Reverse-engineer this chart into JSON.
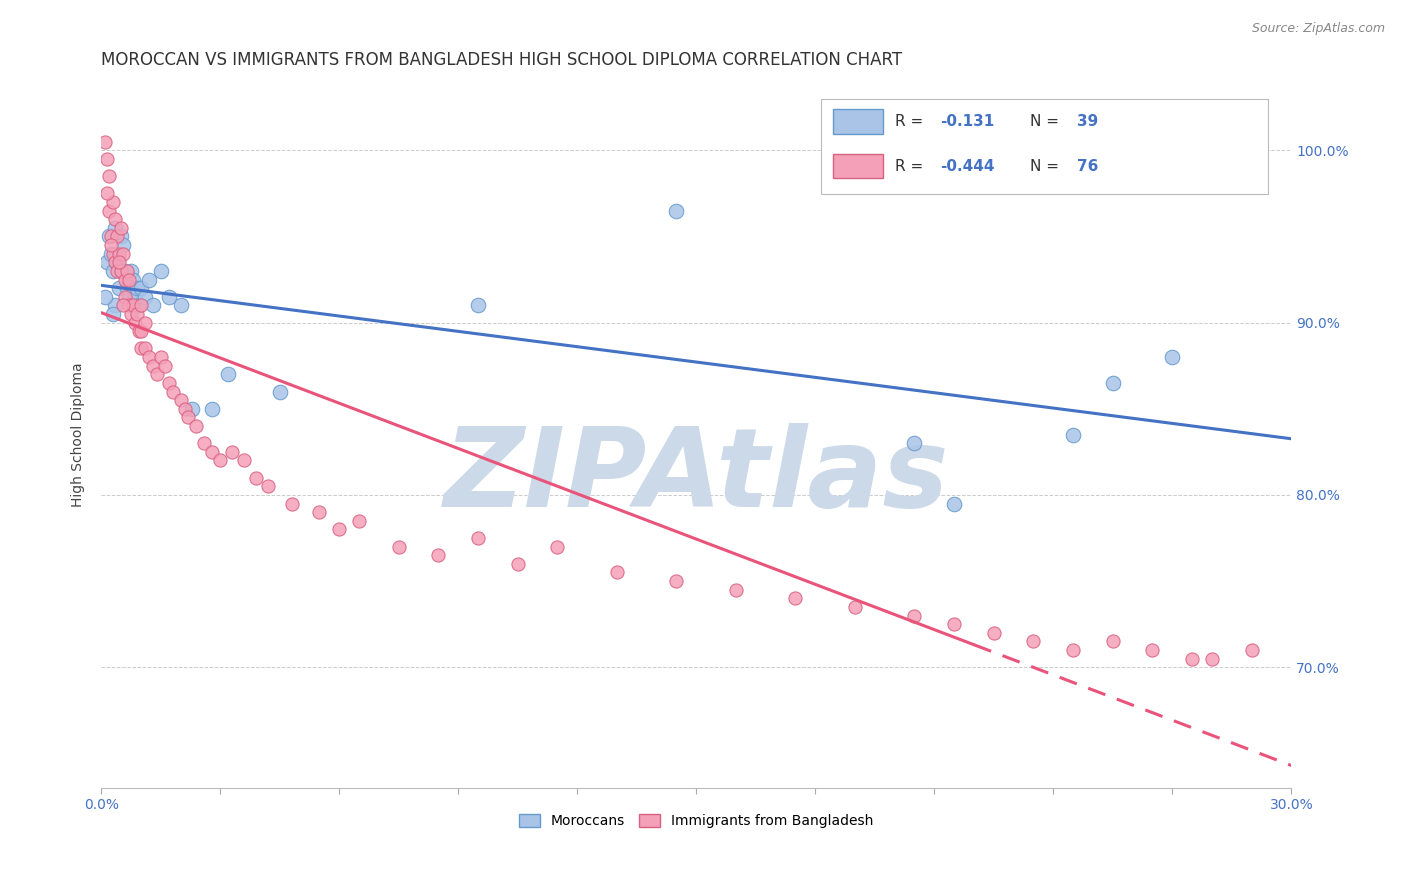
{
  "title": "MOROCCAN VS IMMIGRANTS FROM BANGLADESH HIGH SCHOOL DIPLOMA CORRELATION CHART",
  "source": "Source: ZipAtlas.com",
  "ylabel": "High School Diploma",
  "yticks": [
    70.0,
    80.0,
    90.0,
    100.0
  ],
  "ytick_labels": [
    "70.0%",
    "80.0%",
    "90.0%",
    "100.0%"
  ],
  "xlim": [
    0.0,
    30.0
  ],
  "ylim": [
    63.0,
    104.0
  ],
  "r_blue": -0.131,
  "n_blue": 39,
  "r_pink": -0.444,
  "n_pink": 76,
  "blue_color": "#4472C4",
  "pink_color": "#E8547A",
  "blue_scatter_color": "#aac4e8",
  "pink_scatter_color": "#f4a0b8",
  "blue_scatter_edge": "#6699cc",
  "pink_scatter_edge": "#d96080",
  "watermark": "ZIPAtlas",
  "watermark_color": "#ccd9e8",
  "title_fontsize": 12,
  "axis_label_fontsize": 10,
  "tick_fontsize": 10,
  "blue_points_x": [
    0.15,
    0.2,
    0.25,
    0.3,
    0.35,
    0.35,
    0.4,
    0.45,
    0.5,
    0.5,
    0.55,
    0.6,
    0.65,
    0.7,
    0.75,
    0.8,
    0.85,
    0.9,
    0.95,
    1.0,
    1.1,
    1.2,
    1.3,
    1.5,
    1.7,
    2.0,
    2.3,
    2.8,
    3.2,
    4.5,
    9.5,
    14.5,
    20.5,
    21.5,
    24.5,
    25.5,
    27.0,
    0.1,
    0.3
  ],
  "blue_points_y": [
    93.5,
    95.0,
    94.0,
    93.0,
    95.5,
    91.0,
    93.5,
    92.0,
    95.0,
    93.0,
    94.5,
    93.0,
    92.0,
    91.5,
    93.0,
    92.5,
    91.5,
    92.0,
    91.0,
    92.0,
    91.5,
    92.5,
    91.0,
    93.0,
    91.5,
    91.0,
    85.0,
    85.0,
    87.0,
    86.0,
    91.0,
    96.5,
    83.0,
    79.5,
    83.5,
    86.5,
    88.0,
    91.5,
    90.5
  ],
  "pink_points_x": [
    0.1,
    0.15,
    0.2,
    0.2,
    0.25,
    0.3,
    0.3,
    0.35,
    0.35,
    0.4,
    0.4,
    0.45,
    0.5,
    0.5,
    0.55,
    0.6,
    0.6,
    0.65,
    0.7,
    0.7,
    0.75,
    0.8,
    0.85,
    0.9,
    0.95,
    1.0,
    1.0,
    1.0,
    1.1,
    1.1,
    1.2,
    1.3,
    1.4,
    1.5,
    1.6,
    1.7,
    1.8,
    2.0,
    2.1,
    2.2,
    2.4,
    2.6,
    2.8,
    3.0,
    3.3,
    3.6,
    3.9,
    4.2,
    4.8,
    5.5,
    6.0,
    6.5,
    7.5,
    8.5,
    9.5,
    10.5,
    11.5,
    13.0,
    14.5,
    16.0,
    17.5,
    19.0,
    20.5,
    21.5,
    22.5,
    23.5,
    24.5,
    25.5,
    26.5,
    27.5,
    28.0,
    29.0,
    0.15,
    0.25,
    0.45,
    0.55
  ],
  "pink_points_y": [
    100.5,
    99.5,
    98.5,
    96.5,
    95.0,
    97.0,
    94.0,
    96.0,
    93.5,
    95.0,
    93.0,
    94.0,
    95.5,
    93.0,
    94.0,
    92.5,
    91.5,
    93.0,
    92.5,
    91.0,
    90.5,
    91.0,
    90.0,
    90.5,
    89.5,
    91.0,
    89.5,
    88.5,
    90.0,
    88.5,
    88.0,
    87.5,
    87.0,
    88.0,
    87.5,
    86.5,
    86.0,
    85.5,
    85.0,
    84.5,
    84.0,
    83.0,
    82.5,
    82.0,
    82.5,
    82.0,
    81.0,
    80.5,
    79.5,
    79.0,
    78.0,
    78.5,
    77.0,
    76.5,
    77.5,
    76.0,
    77.0,
    75.5,
    75.0,
    74.5,
    74.0,
    73.5,
    73.0,
    72.5,
    72.0,
    71.5,
    71.0,
    71.5,
    71.0,
    70.5,
    70.5,
    71.0,
    97.5,
    94.5,
    93.5,
    91.0
  ],
  "trend_line_dash_start_x": 22.0,
  "xticks": [
    0,
    3,
    6,
    9,
    12,
    15,
    18,
    21,
    24,
    27,
    30
  ]
}
